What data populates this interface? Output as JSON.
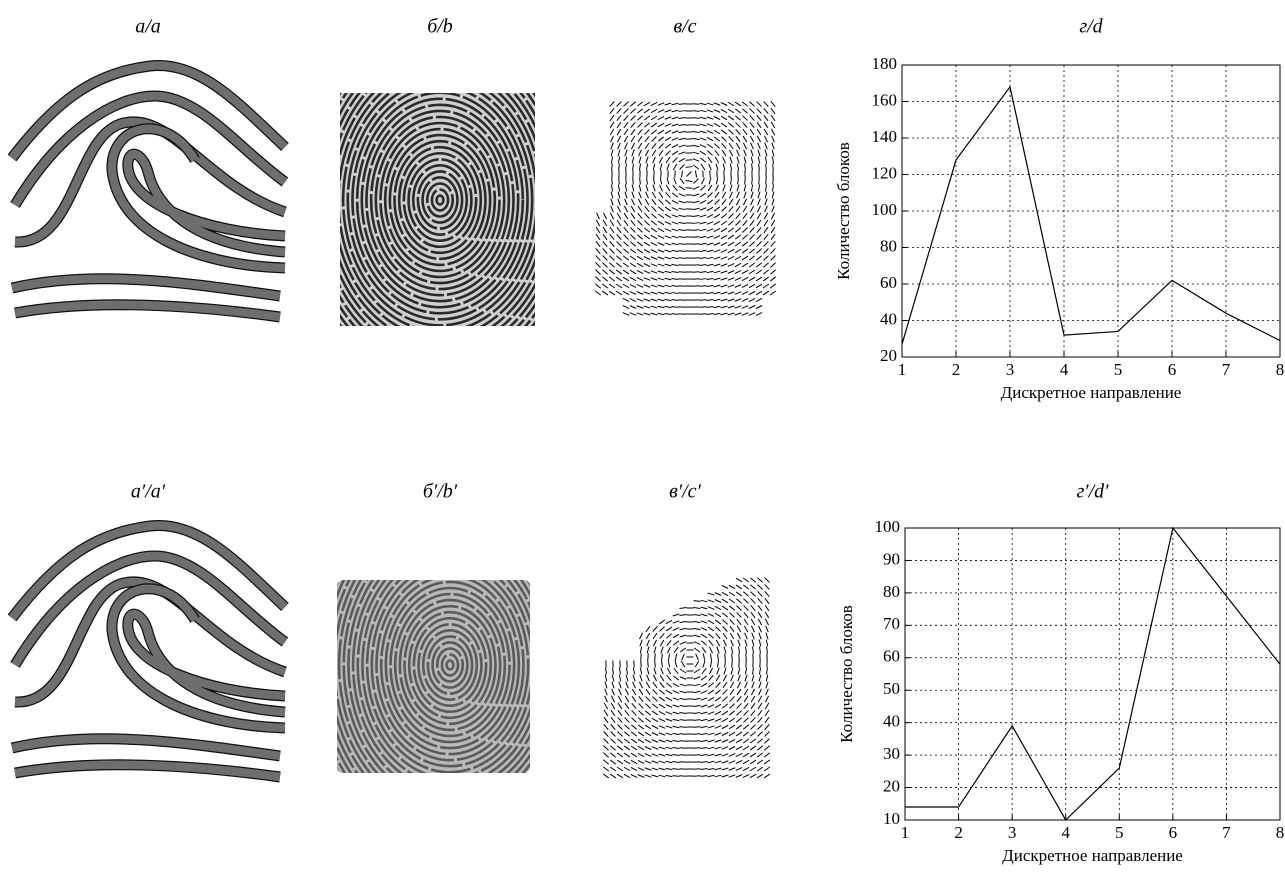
{
  "panels": [
    [
      "а/a",
      "б/b",
      "в/c"
    ],
    [
      "a′/a′",
      "б′/b′",
      "в′/c′"
    ]
  ],
  "chart_data": [
    {
      "type": "line",
      "title": "г/d",
      "x_label": "Дискретное направление",
      "y_label": "Количество блоков",
      "x": [
        1,
        2,
        3,
        4,
        5,
        6,
        7,
        8
      ],
      "values": [
        27,
        128,
        168,
        32,
        34,
        62,
        44,
        29
      ],
      "color": "#000000",
      "xlim": [
        1,
        8
      ],
      "xticks": [
        1,
        2,
        3,
        4,
        5,
        6,
        7,
        8
      ],
      "ylim": [
        20,
        180
      ],
      "yticks": [
        20,
        40,
        60,
        80,
        100,
        120,
        140,
        160,
        180
      ],
      "grid": true
    },
    {
      "type": "line",
      "title": "г′/d′",
      "x_label": "Дискретное направление",
      "y_label": "Количество блоков",
      "x": [
        1,
        2,
        3,
        4,
        5,
        6,
        7,
        8
      ],
      "values": [
        14,
        14,
        39,
        10,
        26,
        100,
        79,
        58
      ],
      "color": "#000000",
      "xlim": [
        1,
        8
      ],
      "xticks": [
        1,
        2,
        3,
        4,
        5,
        6,
        7,
        8
      ],
      "ylim": [
        10,
        100
      ],
      "yticks": [
        10,
        20,
        30,
        40,
        50,
        60,
        70,
        80,
        90,
        100
      ],
      "grid": true
    }
  ]
}
